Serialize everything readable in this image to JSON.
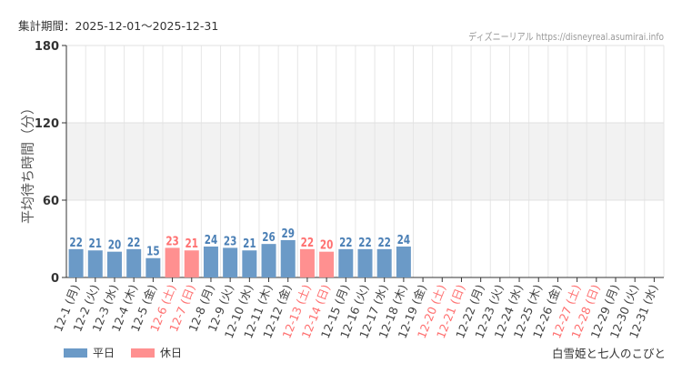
{
  "header": {
    "period": "集計期間：2025-12-01～2025-12-31",
    "source": "ディズニーリアル https://disneyreal.asumirai.info"
  },
  "footer": {
    "attraction": "白雪姫と七人のこびと"
  },
  "colors": {
    "weekday": "#6b9ac7",
    "holiday": "#ff9090",
    "weekday_text": "#4a7fb5",
    "holiday_text": "#ff7070"
  },
  "chart_data": {
    "type": "bar",
    "ylabel": "平均待ち時間（分）",
    "ylim": [
      0,
      180
    ],
    "yticks": [
      "0",
      "60",
      "120",
      "180"
    ],
    "categories": [
      "12-1 (月)",
      "12-2 (火)",
      "12-3 (水)",
      "12-4 (木)",
      "12-5 (金)",
      "12-6 (土)",
      "12-7 (日)",
      "12-8 (月)",
      "12-9 (火)",
      "12-10 (水)",
      "12-11 (木)",
      "12-12 (金)",
      "12-13 (土)",
      "12-14 (日)",
      "12-15 (月)",
      "12-16 (火)",
      "12-17 (水)",
      "12-18 (木)",
      "12-19 (金)",
      "12-20 (土)",
      "12-21 (日)",
      "12-22 (月)",
      "12-23 (火)",
      "12-24 (水)",
      "12-25 (木)",
      "12-26 (金)",
      "12-27 (土)",
      "12-28 (日)",
      "12-29 (月)",
      "12-30 (火)",
      "12-31 (水)"
    ],
    "holiday": [
      false,
      false,
      false,
      false,
      false,
      true,
      true,
      false,
      false,
      false,
      false,
      false,
      true,
      true,
      false,
      false,
      false,
      false,
      false,
      true,
      true,
      false,
      false,
      false,
      false,
      false,
      true,
      true,
      false,
      false,
      false
    ],
    "values": [
      22,
      21,
      20,
      22,
      15,
      23,
      21,
      24,
      23,
      21,
      26,
      29,
      22,
      20,
      22,
      22,
      22,
      24,
      null,
      null,
      null,
      null,
      null,
      null,
      null,
      null,
      null,
      null,
      null,
      null,
      null
    ],
    "legend": [
      {
        "name": "平日",
        "key": "weekday"
      },
      {
        "name": "休日",
        "key": "holiday"
      }
    ],
    "legend_position": "bottom-left"
  }
}
